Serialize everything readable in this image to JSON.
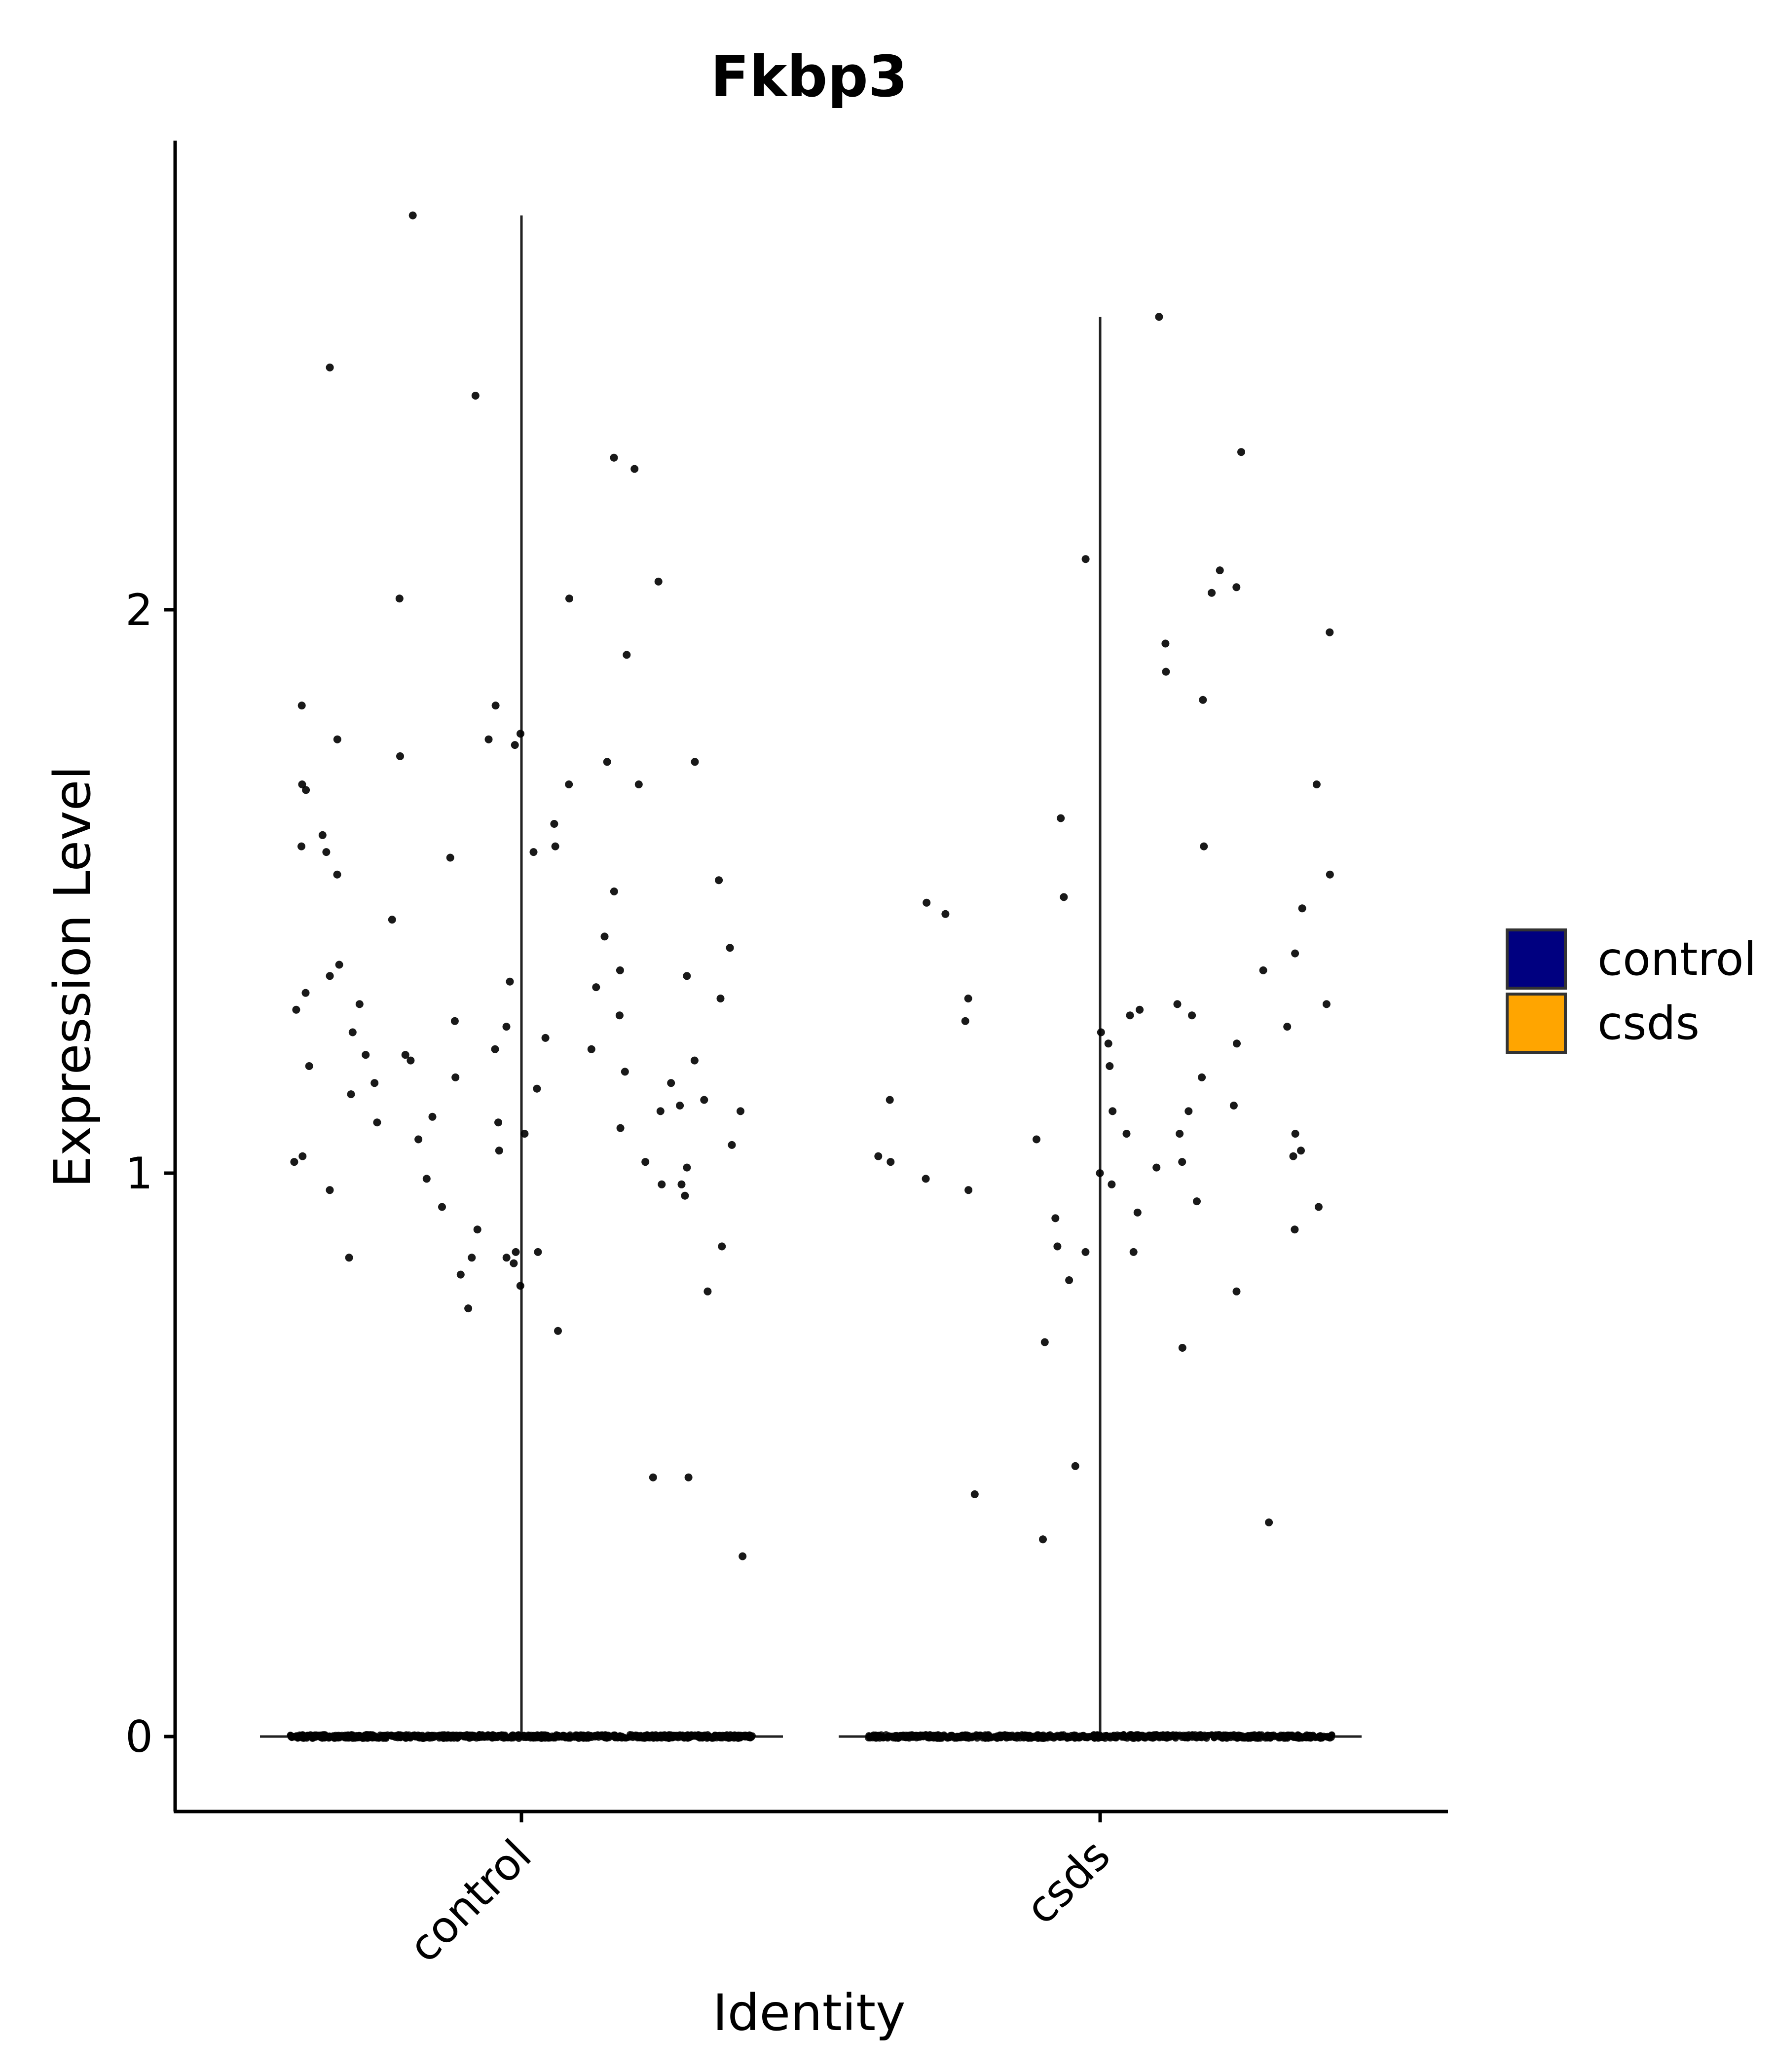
{
  "chart_data": {
    "type": "violin",
    "title": "Fkbp3",
    "xlabel": "Identity",
    "ylabel": "Expression Level",
    "categories": [
      "control",
      "csds"
    ],
    "yticks": [
      "0",
      "1",
      "2"
    ],
    "ylim": [
      -0.13,
      2.84
    ],
    "grid": false,
    "legend": {
      "position": "right",
      "title": "",
      "entries": [
        "control",
        "csds"
      ]
    },
    "colors": {
      "control": "#000080",
      "csds": "#FFA500",
      "point": "#000000",
      "axis": "#000000"
    },
    "series": [
      {
        "name": "control",
        "max": 2.7,
        "zero_count": 900,
        "nonzero": [
          2.7,
          2.43,
          2.38,
          2.25,
          2.27,
          2.05,
          2.02,
          2.02,
          1.92,
          1.83,
          1.83,
          1.78,
          1.77,
          1.77,
          1.76,
          1.74,
          1.73,
          1.73,
          1.69,
          1.69,
          1.69,
          1.68,
          1.62,
          1.6,
          1.58,
          1.58,
          1.57,
          1.57,
          1.56,
          1.53,
          1.52,
          1.5,
          1.45,
          1.42,
          1.4,
          1.37,
          1.36,
          1.35,
          1.35,
          1.34,
          1.33,
          1.32,
          1.31,
          1.3,
          1.29,
          1.28,
          1.27,
          1.26,
          1.25,
          1.24,
          1.22,
          1.22,
          1.21,
          1.21,
          1.2,
          1.2,
          1.19,
          1.18,
          1.17,
          1.16,
          1.16,
          1.15,
          1.14,
          1.13,
          1.12,
          1.11,
          1.11,
          1.1,
          1.09,
          1.09,
          1.08,
          1.07,
          1.06,
          1.05,
          1.04,
          1.03,
          1.02,
          1.02,
          1.01,
          0.99,
          0.98,
          0.98,
          0.97,
          0.96,
          0.94,
          0.9,
          0.87,
          0.86,
          0.86,
          0.85,
          0.85,
          0.85,
          0.84,
          0.82,
          0.8,
          0.79,
          0.76,
          0.72,
          0.46,
          0.46,
          0.32
        ]
      },
      {
        "name": "csds",
        "max": 2.52,
        "zero_count": 820,
        "nonzero": [
          2.52,
          2.28,
          2.09,
          2.07,
          2.04,
          2.03,
          1.96,
          1.94,
          1.89,
          1.84,
          1.69,
          1.63,
          1.58,
          1.53,
          1.49,
          1.48,
          1.47,
          1.46,
          1.39,
          1.36,
          1.31,
          1.3,
          1.3,
          1.29,
          1.28,
          1.28,
          1.27,
          1.26,
          1.25,
          1.23,
          1.23,
          1.19,
          1.17,
          1.13,
          1.12,
          1.11,
          1.11,
          1.07,
          1.07,
          1.07,
          1.06,
          1.04,
          1.03,
          1.03,
          1.02,
          1.02,
          1.01,
          1.0,
          0.99,
          0.98,
          0.97,
          0.95,
          0.94,
          0.93,
          0.92,
          0.9,
          0.87,
          0.86,
          0.86,
          0.81,
          0.79,
          0.7,
          0.69,
          0.48,
          0.43,
          0.38,
          0.35
        ]
      }
    ]
  }
}
